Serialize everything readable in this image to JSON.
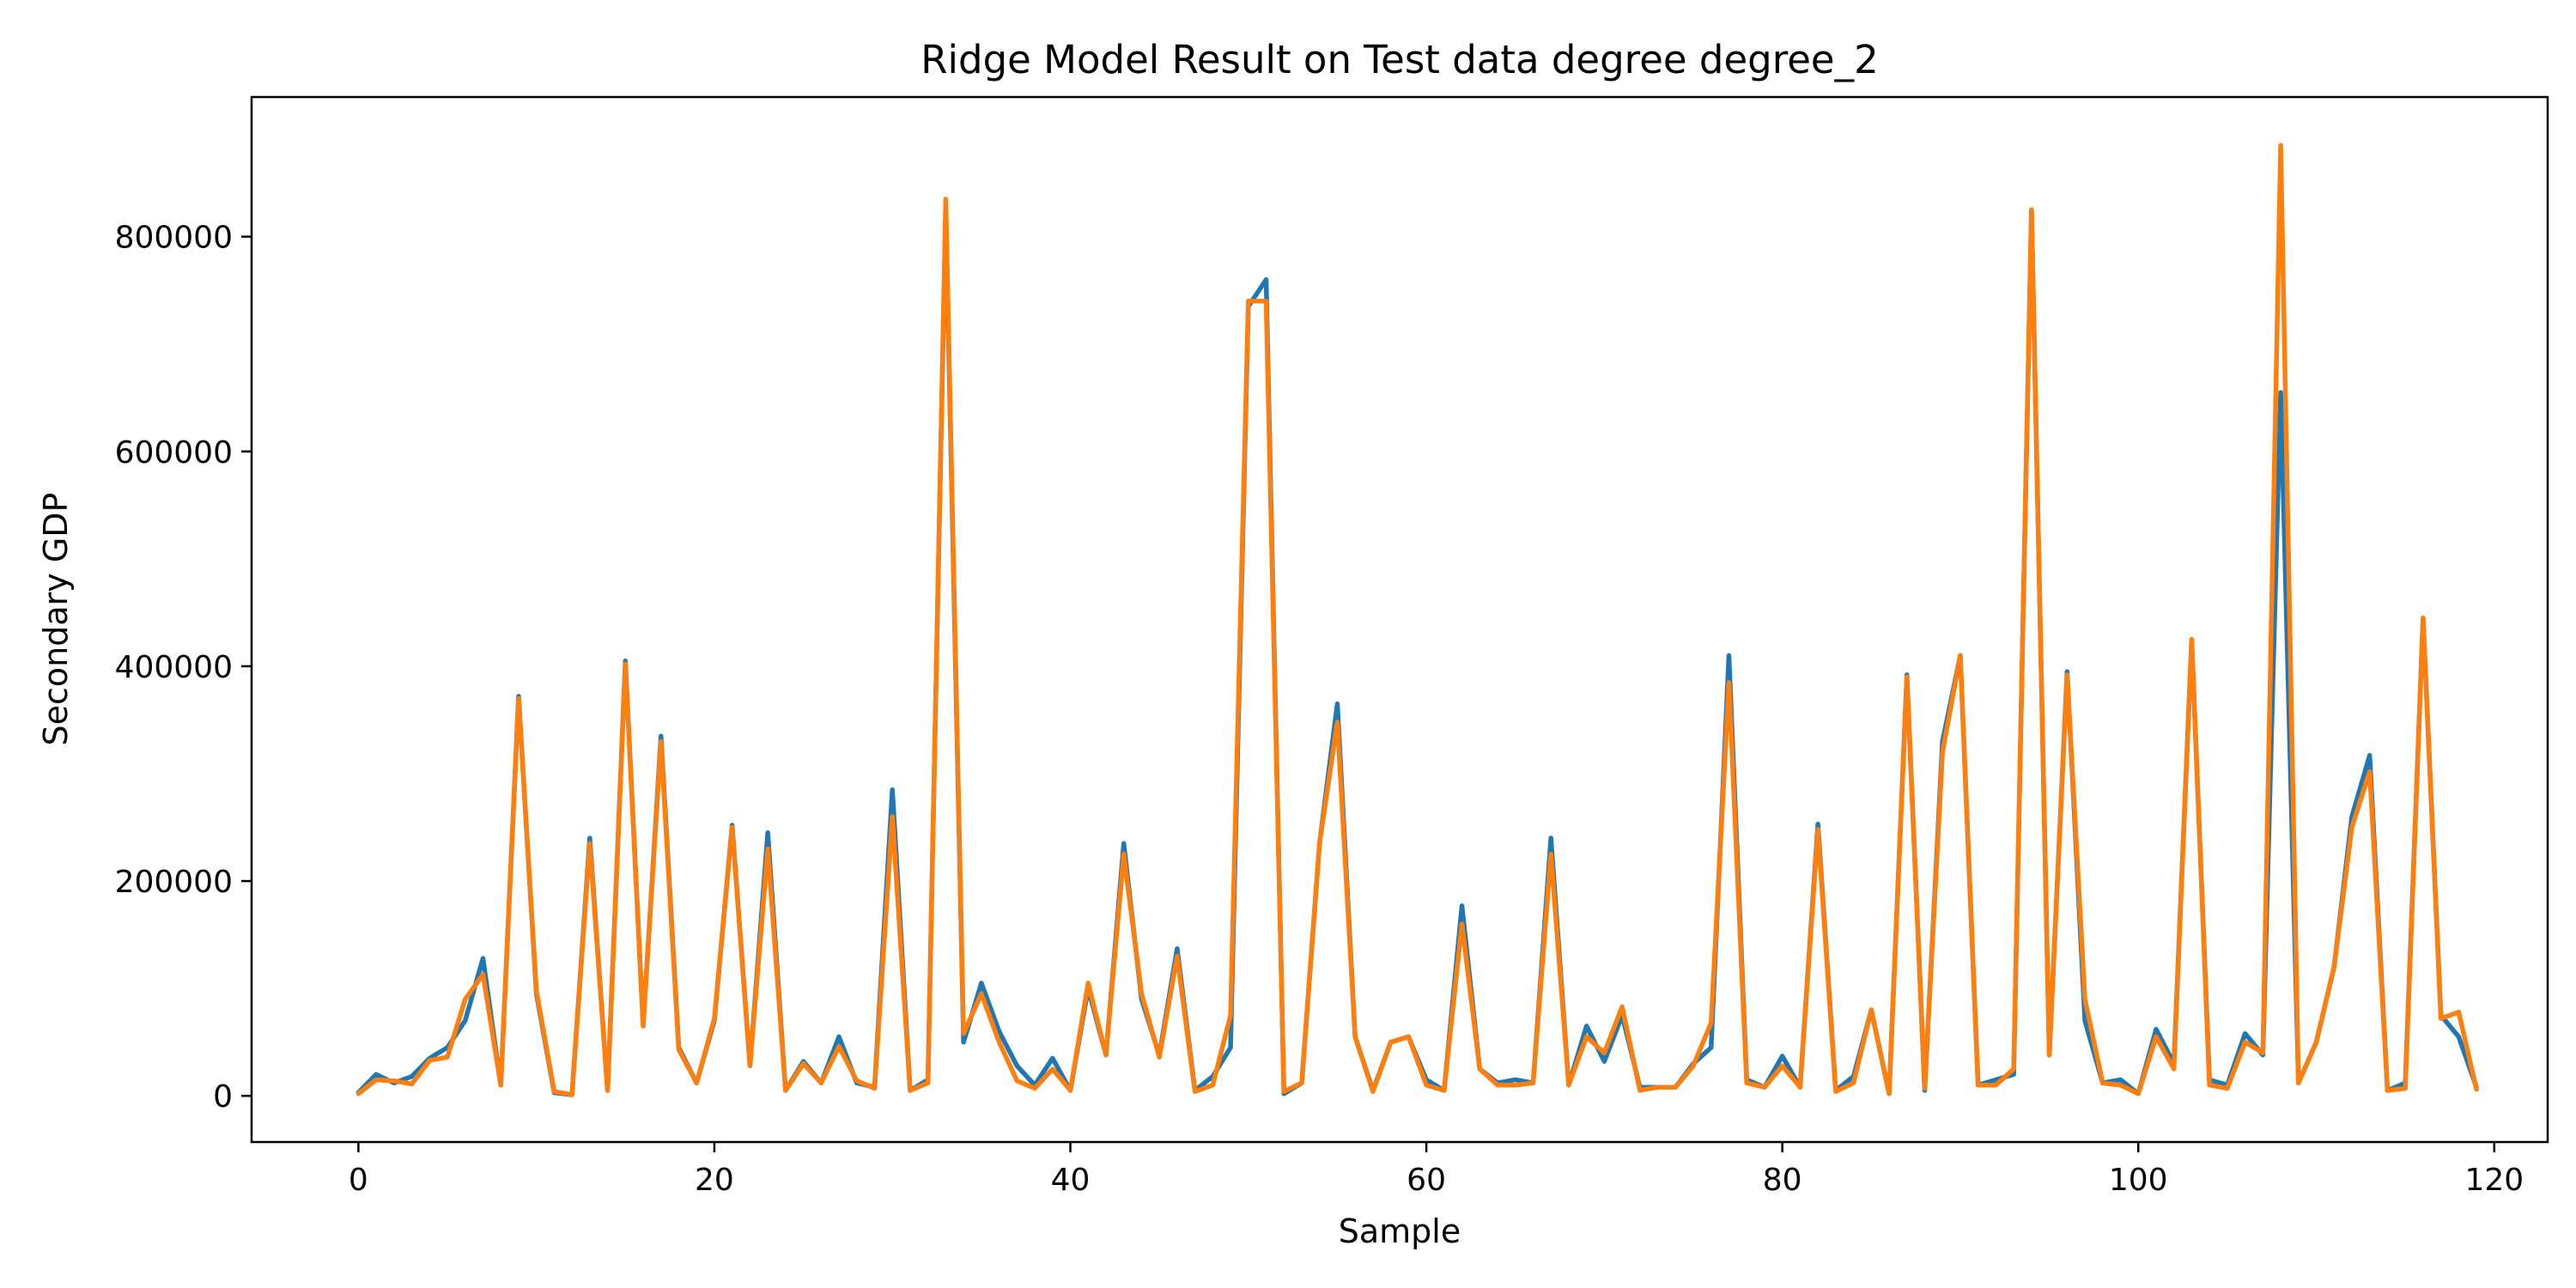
{
  "chart_data": {
    "type": "line",
    "title": "Ridge Model Result on Test data degree degree_2",
    "xlabel": "Sample",
    "ylabel": "Secondary GDP",
    "xlim": [
      -6,
      123
    ],
    "ylim": [
      -43000,
      930000
    ],
    "xticks": [
      0,
      20,
      40,
      60,
      80,
      100,
      120
    ],
    "yticks": [
      0,
      200000,
      400000,
      600000,
      800000
    ],
    "grid": false,
    "legend": "none",
    "series": [
      {
        "color": "#1f77b4",
        "values": [
          3000,
          20000,
          12000,
          18000,
          35000,
          45000,
          70000,
          128000,
          10000,
          372000,
          95000,
          3000,
          1000,
          240000,
          5000,
          405000,
          65000,
          335000,
          45000,
          12000,
          70000,
          252000,
          28000,
          245000,
          5000,
          32000,
          12000,
          55000,
          12000,
          8000,
          285000,
          5000,
          15000,
          825000,
          50000,
          105000,
          60000,
          28000,
          10000,
          35000,
          5000,
          100000,
          38000,
          235000,
          90000,
          38000,
          137000,
          5000,
          18000,
          45000,
          735000,
          760000,
          2000,
          12000,
          235000,
          365000,
          55000,
          5000,
          50000,
          55000,
          15000,
          5000,
          177000,
          25000,
          12000,
          15000,
          12000,
          240000,
          10000,
          65000,
          32000,
          75000,
          8000,
          8000,
          8000,
          30000,
          45000,
          410000,
          15000,
          8000,
          37000,
          8000,
          253000,
          5000,
          18000,
          80000,
          2000,
          392000,
          5000,
          330000,
          410000,
          10000,
          15000,
          20000,
          825000,
          38000,
          395000,
          70000,
          12000,
          15000,
          2000,
          62000,
          30000,
          425000,
          15000,
          10000,
          58000,
          38000,
          655000,
          12000,
          50000,
          120000,
          260000,
          317000,
          5000,
          12000,
          445000,
          75000,
          55000,
          8000
        ]
      },
      {
        "color": "#ff7f0e",
        "values": [
          2000,
          15000,
          14000,
          11000,
          33000,
          36000,
          90000,
          113000,
          10000,
          370000,
          98000,
          4000,
          1000,
          235000,
          5000,
          402000,
          65000,
          330000,
          43000,
          12000,
          72000,
          250000,
          28000,
          230000,
          5000,
          30000,
          12000,
          46000,
          14000,
          7000,
          260000,
          5000,
          12000,
          835000,
          58000,
          95000,
          50000,
          14000,
          7000,
          25000,
          5000,
          105000,
          38000,
          225000,
          95000,
          36000,
          130000,
          4000,
          10000,
          75000,
          740000,
          740000,
          4000,
          12000,
          235000,
          348000,
          55000,
          4000,
          50000,
          55000,
          10000,
          5000,
          160000,
          25000,
          10000,
          10000,
          12000,
          225000,
          10000,
          55000,
          40000,
          83000,
          5000,
          8000,
          8000,
          28000,
          68000,
          385000,
          12000,
          8000,
          28000,
          8000,
          248000,
          4000,
          12000,
          80000,
          2000,
          390000,
          7000,
          320000,
          410000,
          10000,
          10000,
          25000,
          825000,
          38000,
          392000,
          90000,
          12000,
          10000,
          2000,
          55000,
          25000,
          425000,
          10000,
          7000,
          50000,
          40000,
          885000,
          12000,
          50000,
          120000,
          250000,
          302000,
          5000,
          7000,
          445000,
          72000,
          78000,
          6000
        ]
      }
    ]
  }
}
